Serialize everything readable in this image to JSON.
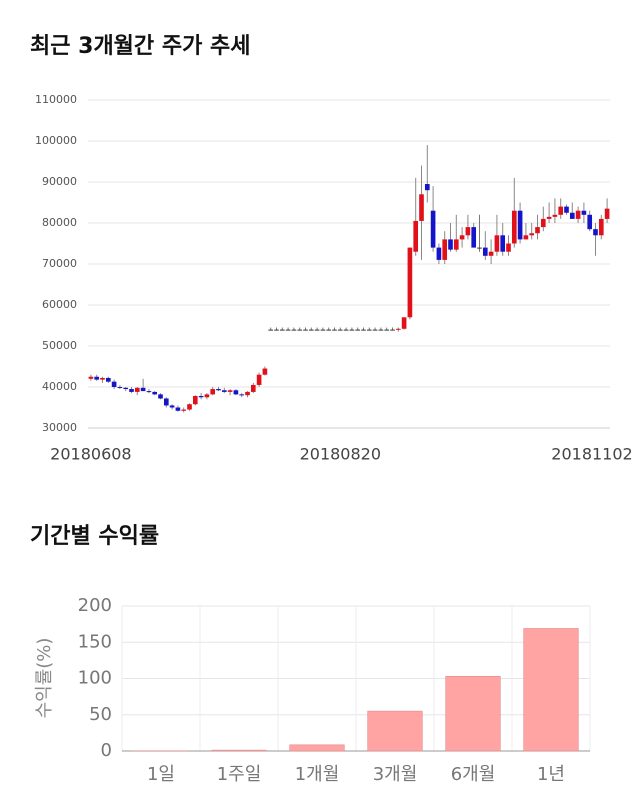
{
  "chart_data": [
    {
      "type": "candlestick",
      "title": "최근 3개월간 주가 추세",
      "categories": [
        "20180608",
        null,
        null,
        null,
        null,
        null,
        null,
        null,
        null,
        null,
        null,
        null,
        null,
        null,
        null,
        null,
        null,
        null,
        null,
        null,
        null,
        null,
        null,
        null,
        null,
        null,
        null,
        null,
        null,
        null,
        null,
        null,
        null,
        null,
        null,
        null,
        null,
        null,
        null,
        null,
        null,
        null,
        null,
        "20180820",
        null,
        null,
        null,
        null,
        null,
        null,
        null,
        null,
        null,
        null,
        null,
        null,
        null,
        null,
        null,
        null,
        null,
        null,
        null,
        null,
        null,
        null,
        null,
        null,
        null,
        null,
        null,
        null,
        null,
        null,
        null,
        null,
        null,
        null,
        null,
        null,
        null,
        null,
        null,
        null,
        null,
        null,
        null,
        null,
        null,
        "20181102"
      ],
      "open": [
        42000,
        42500,
        41800,
        42200,
        41300,
        40000,
        39800,
        39500,
        38800,
        39800,
        39000,
        38800,
        38200,
        37200,
        35500,
        35000,
        34200,
        34500,
        35800,
        37800,
        37500,
        38200,
        39500,
        39200,
        38800,
        39200,
        38200,
        38000,
        38800,
        40500,
        43000,
        54000,
        54000,
        54000,
        54000,
        54000,
        54000,
        54000,
        54000,
        54000,
        54000,
        54000,
        54000,
        54000,
        54000,
        54000,
        54000,
        54000,
        54000,
        54000,
        54000,
        54000,
        54000,
        54000,
        54200,
        57000,
        73000,
        80500,
        89500,
        83000,
        74000,
        71000,
        76000,
        73500,
        76000,
        77000,
        79000,
        74000,
        74000,
        72000,
        73000,
        77000,
        73000,
        75000,
        83000,
        76000,
        77000,
        77500,
        79000,
        81000,
        81500,
        82000,
        84000,
        82500,
        81000,
        83000,
        82000,
        78500,
        77000,
        81000
      ],
      "high": [
        43000,
        43000,
        42500,
        42500,
        41800,
        40500,
        40000,
        40000,
        40000,
        42000,
        39500,
        39000,
        38500,
        37500,
        35800,
        35500,
        35000,
        36000,
        38000,
        38500,
        38500,
        40000,
        40000,
        39800,
        39500,
        39500,
        38500,
        39000,
        41000,
        43500,
        45000,
        54500,
        54500,
        54500,
        54500,
        54500,
        54500,
        54500,
        54500,
        54500,
        54500,
        54500,
        54500,
        54500,
        54500,
        54500,
        54500,
        54500,
        54500,
        54500,
        54500,
        54500,
        54500,
        54500,
        57000,
        74000,
        91000,
        94000,
        99000,
        89000,
        75000,
        78000,
        80000,
        82000,
        79000,
        82000,
        80000,
        82000,
        78000,
        76000,
        82000,
        80000,
        77000,
        91000,
        85000,
        80000,
        80000,
        82000,
        84000,
        85000,
        86000,
        86000,
        84500,
        85000,
        84000,
        85000,
        83000,
        80000,
        82000,
        86000
      ],
      "low": [
        41500,
        41500,
        41000,
        41000,
        39500,
        39500,
        39000,
        38500,
        38000,
        39000,
        38500,
        38000,
        37000,
        35000,
        34500,
        34000,
        33800,
        34200,
        35500,
        37000,
        37000,
        38000,
        39000,
        38500,
        38000,
        38000,
        37500,
        37500,
        38500,
        40000,
        42800,
        53800,
        53800,
        53800,
        53800,
        53800,
        53800,
        53800,
        53800,
        53800,
        53800,
        53800,
        53800,
        53800,
        53800,
        53800,
        53800,
        53800,
        53800,
        53800,
        53800,
        53800,
        53800,
        53500,
        54000,
        56500,
        72000,
        71000,
        85000,
        73000,
        70000,
        70000,
        73000,
        73000,
        74000,
        76000,
        74000,
        73000,
        71000,
        70000,
        72000,
        72000,
        72000,
        74000,
        75000,
        76000,
        76000,
        76000,
        78000,
        80000,
        80000,
        81000,
        82000,
        81000,
        80000,
        80000,
        78000,
        72000,
        76000,
        80000
      ],
      "close": [
        42500,
        41800,
        42200,
        41300,
        40000,
        39800,
        39500,
        38800,
        39800,
        39000,
        38800,
        38200,
        37200,
        35500,
        35000,
        34200,
        34500,
        35800,
        37800,
        37500,
        38200,
        39500,
        39200,
        38800,
        39200,
        38200,
        38000,
        38800,
        40500,
        43000,
        44500,
        54000,
        54000,
        54000,
        54000,
        54000,
        54000,
        54000,
        54000,
        54000,
        54000,
        54000,
        54000,
        54000,
        54000,
        54000,
        54000,
        54000,
        54000,
        54000,
        54000,
        54000,
        54000,
        54200,
        57000,
        74000,
        80500,
        87000,
        88000,
        74000,
        71000,
        76000,
        73500,
        76000,
        77000,
        79000,
        74000,
        74000,
        72000,
        73000,
        77000,
        73000,
        75000,
        83000,
        76000,
        77000,
        77500,
        79000,
        81000,
        81500,
        82000,
        84000,
        82500,
        81000,
        83000,
        82000,
        78500,
        77000,
        81000,
        83500
      ],
      "up_color": "#e0111b",
      "down_color": "#1414c8",
      "ylim": [
        30000,
        110000
      ],
      "yticks": [
        30000,
        40000,
        50000,
        60000,
        70000,
        80000,
        90000,
        100000,
        110000
      ],
      "grid": true
    },
    {
      "type": "bar",
      "title": "기간별 수익률",
      "y_label": "수익률(%)",
      "categories": [
        "1일",
        "1주일",
        "1개월",
        "3개월",
        "6개월",
        "1년"
      ],
      "values": [
        0.2,
        1.2,
        8.5,
        55,
        103,
        169
      ],
      "color": "#ffa3a3",
      "ylim": [
        0,
        200
      ],
      "yticks": [
        0,
        50,
        100,
        150,
        200
      ],
      "grid": true
    }
  ]
}
